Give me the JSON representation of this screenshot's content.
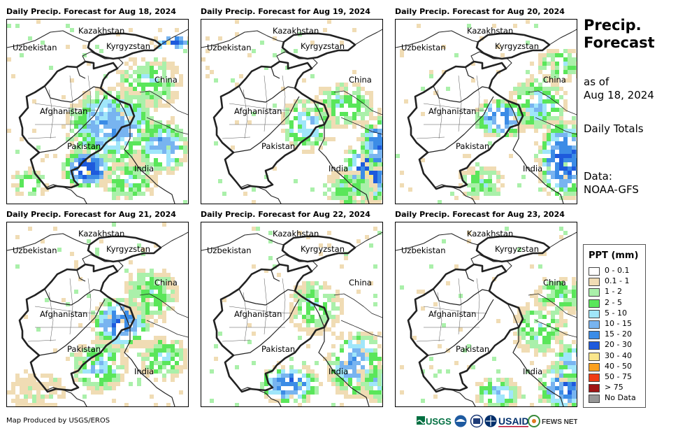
{
  "panels": [
    {
      "title": "Daily Precip. Forecast for Aug 18, 2024"
    },
    {
      "title": "Daily Precip. Forecast for Aug 19, 2024"
    },
    {
      "title": "Daily Precip. Forecast for Aug 20, 2024"
    },
    {
      "title": "Daily Precip. Forecast for Aug 21, 2024"
    },
    {
      "title": "Daily Precip. Forecast for Aug 22, 2024"
    },
    {
      "title": "Daily Precip. Forecast for Aug 23, 2024"
    }
  ],
  "country_labels": {
    "kazakhstan": "Kazakhstan",
    "uzbekistan": "Uzbekistan",
    "kyrgyzstan": "Kyrgyzstan",
    "china": "China",
    "afghanistan": "Afghanistan",
    "pakistan": "Pakistan",
    "india": "India"
  },
  "sidebar": {
    "title_line1": "Precip.",
    "title_line2": "Forecast",
    "as_of_line1": "as of",
    "as_of_line2": "Aug 18, 2024",
    "totals": "Daily Totals",
    "data_line1": "Data:",
    "data_line2": "NOAA-GFS"
  },
  "legend": {
    "title": "PPT (mm)",
    "items": [
      {
        "label": "0 - 0.1",
        "color": "#ffffff"
      },
      {
        "label": "0.1 - 1",
        "color": "#f0dcb4"
      },
      {
        "label": "1 - 2",
        "color": "#aaf0aa"
      },
      {
        "label": "2 - 5",
        "color": "#5ae65a"
      },
      {
        "label": "5 - 10",
        "color": "#a0e6fa"
      },
      {
        "label": "10 - 15",
        "color": "#78b4f0"
      },
      {
        "label": "15 - 20",
        "color": "#3c8ce6"
      },
      {
        "label": "20 - 30",
        "color": "#1e5adc"
      },
      {
        "label": "30 - 40",
        "color": "#fae68c"
      },
      {
        "label": "40 - 50",
        "color": "#faa01e"
      },
      {
        "label": "50 - 75",
        "color": "#f03c14"
      },
      {
        "label": "> 75",
        "color": "#a01414"
      },
      {
        "label": "No Data",
        "color": "#969696"
      }
    ]
  },
  "footer": {
    "credit": "Map Produced by USGS/EROS",
    "logo_usgs": "USGS",
    "logo_usaid": "USAID",
    "logo_fews": "FEWS NET"
  }
}
